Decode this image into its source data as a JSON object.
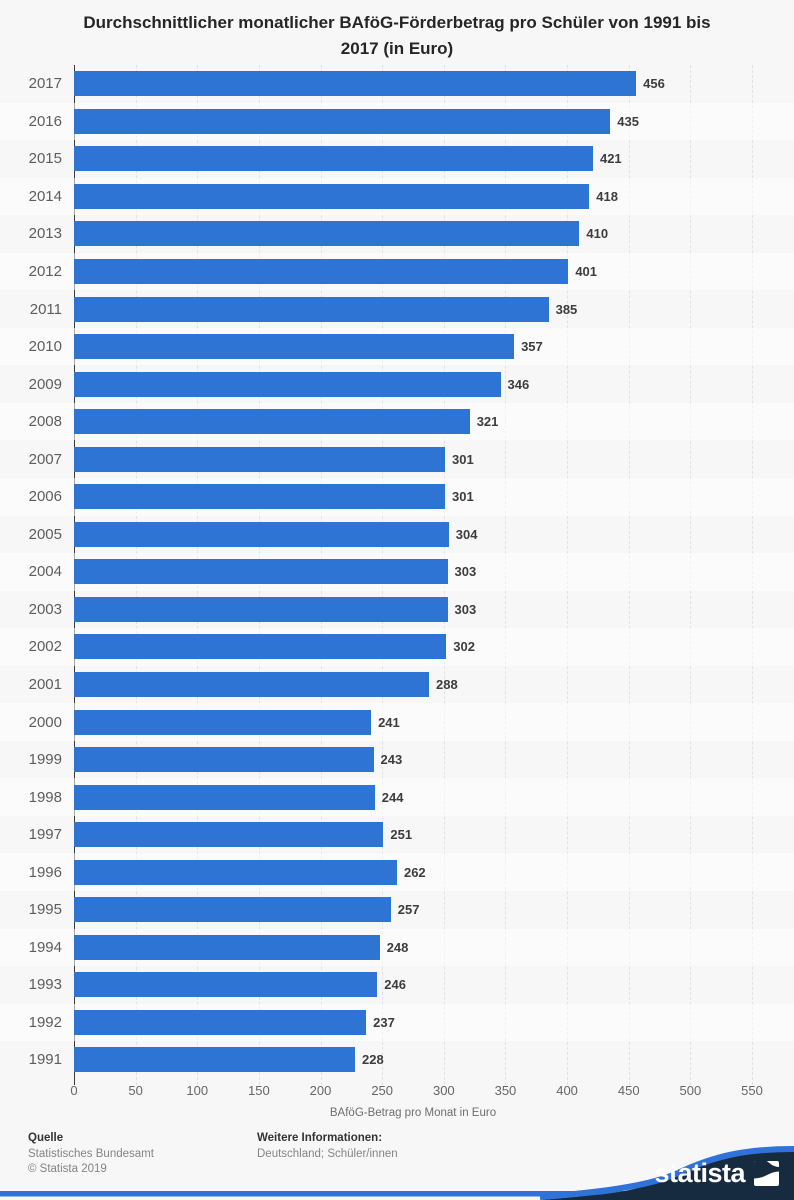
{
  "title": {
    "line1": "Durchschnittlicher monatlicher BAföG-Förderbetrag pro Schüler von 1991 bis",
    "line2": "2017 (in Euro)"
  },
  "chart_data": {
    "type": "bar",
    "orientation": "horizontal",
    "title": "Durchschnittlicher monatlicher BAföG-Förderbetrag pro Schüler von 1991 bis 2017 (in Euro)",
    "categories": [
      "2017",
      "2016",
      "2015",
      "2014",
      "2013",
      "2012",
      "2011",
      "2010",
      "2009",
      "2008",
      "2007",
      "2006",
      "2005",
      "2004",
      "2003",
      "2002",
      "2001",
      "2000",
      "1999",
      "1998",
      "1997",
      "1996",
      "1995",
      "1994",
      "1993",
      "1992",
      "1991"
    ],
    "values": [
      456,
      435,
      421,
      418,
      410,
      401,
      385,
      357,
      346,
      321,
      301,
      301,
      304,
      303,
      303,
      302,
      288,
      241,
      243,
      244,
      251,
      262,
      257,
      248,
      246,
      237,
      228
    ],
    "xlabel": "BAföG-Betrag pro Monat in Euro",
    "xlim": [
      0,
      550
    ],
    "xticks": [
      0,
      50,
      100,
      150,
      200,
      250,
      300,
      350,
      400,
      450,
      500,
      550
    ],
    "grid": "vertical-dashed",
    "legend": "none",
    "value_labels": "end-of-bar"
  },
  "footer": {
    "source_label": "Quelle",
    "source_name": "Statistisches Bundesamt",
    "copyright": "© Statista 2019",
    "info_label": "Weitere Informationen:",
    "info_value": "Deutschland; Schüler/innen",
    "brand_name": "statista"
  },
  "colors": {
    "bar": "#2d74d4",
    "accent_blue": "#2f72d8",
    "brand_navy": "#162a40",
    "background": "#f7f7f7"
  }
}
